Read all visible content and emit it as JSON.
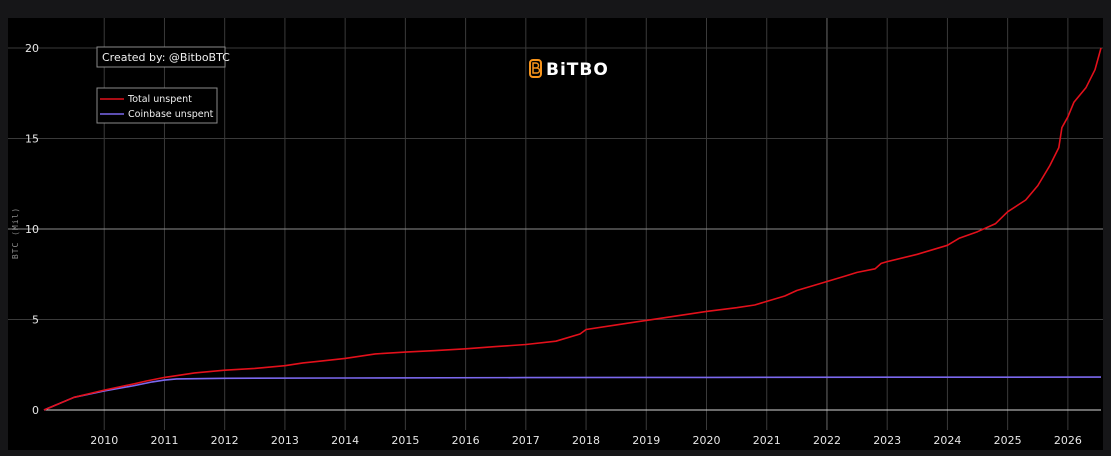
{
  "chart_data": {
    "type": "line",
    "title": "",
    "xlabel": "",
    "ylabel": "BTC (Mil)",
    "xlim": [
      2009.0,
      2026.55
    ],
    "ylim": [
      0,
      20
    ],
    "x_ticks": [
      "2010",
      "2011",
      "2012",
      "2013",
      "2014",
      "2015",
      "2016",
      "2017",
      "2018",
      "2019",
      "2020",
      "2021",
      "2022",
      "2023",
      "2024",
      "2025",
      "2026"
    ],
    "y_ticks": [
      "0",
      "5",
      "10",
      "15",
      "20"
    ],
    "grid": true,
    "legend_position": "top-left",
    "series": [
      {
        "name": "Total unspent",
        "color": "#e3101b",
        "points": [
          [
            2009.0,
            0.0
          ],
          [
            2009.5,
            0.7
          ],
          [
            2010.0,
            1.1
          ],
          [
            2010.5,
            1.45
          ],
          [
            2010.7,
            1.6
          ],
          [
            2011.0,
            1.8
          ],
          [
            2011.5,
            2.05
          ],
          [
            2012.0,
            2.2
          ],
          [
            2012.5,
            2.3
          ],
          [
            2013.0,
            2.45
          ],
          [
            2013.3,
            2.6
          ],
          [
            2013.6,
            2.7
          ],
          [
            2014.0,
            2.85
          ],
          [
            2014.5,
            3.1
          ],
          [
            2015.0,
            3.2
          ],
          [
            2015.5,
            3.28
          ],
          [
            2016.0,
            3.38
          ],
          [
            2016.5,
            3.5
          ],
          [
            2017.0,
            3.62
          ],
          [
            2017.5,
            3.8
          ],
          [
            2017.9,
            4.2
          ],
          [
            2018.0,
            4.45
          ],
          [
            2018.5,
            4.7
          ],
          [
            2019.0,
            4.95
          ],
          [
            2019.5,
            5.2
          ],
          [
            2020.0,
            5.45
          ],
          [
            2020.5,
            5.65
          ],
          [
            2020.8,
            5.8
          ],
          [
            2021.0,
            6.0
          ],
          [
            2021.3,
            6.3
          ],
          [
            2021.5,
            6.6
          ],
          [
            2021.8,
            6.9
          ],
          [
            2022.0,
            7.1
          ],
          [
            2022.3,
            7.4
          ],
          [
            2022.5,
            7.6
          ],
          [
            2022.8,
            7.8
          ],
          [
            2022.9,
            8.1
          ],
          [
            2023.0,
            8.2
          ],
          [
            2023.5,
            8.6
          ],
          [
            2024.0,
            9.1
          ],
          [
            2024.2,
            9.5
          ],
          [
            2024.5,
            9.85
          ],
          [
            2024.8,
            10.3
          ],
          [
            2025.0,
            10.95
          ],
          [
            2025.3,
            11.6
          ],
          [
            2025.5,
            12.4
          ],
          [
            2025.7,
            13.5
          ],
          [
            2025.85,
            14.5
          ],
          [
            2025.9,
            15.6
          ],
          [
            2026.0,
            16.2
          ],
          [
            2026.1,
            17.0
          ],
          [
            2026.3,
            17.8
          ],
          [
            2026.45,
            18.8
          ],
          [
            2026.55,
            20.0
          ]
        ]
      },
      {
        "name": "Coinbase unspent",
        "color": "#7b68ee",
        "points": [
          [
            2009.0,
            0.0
          ],
          [
            2009.5,
            0.7
          ],
          [
            2010.0,
            1.05
          ],
          [
            2010.5,
            1.35
          ],
          [
            2010.8,
            1.55
          ],
          [
            2011.0,
            1.65
          ],
          [
            2011.2,
            1.72
          ],
          [
            2012.0,
            1.75
          ],
          [
            2014.0,
            1.77
          ],
          [
            2017.0,
            1.79
          ],
          [
            2020.0,
            1.8
          ],
          [
            2023.0,
            1.81
          ],
          [
            2026.55,
            1.82
          ]
        ]
      }
    ],
    "annotations": {
      "credit": "Created by: @BitboBTC",
      "logo": "BiTBO"
    }
  },
  "colors": {
    "background": "#000000",
    "page": "#161618",
    "grid": "#3a3a3a",
    "zeroline": "#d6d6d6",
    "logo_accent": "#f7931a"
  },
  "icons": {
    "logo": "bitbo-b-logo-icon"
  }
}
